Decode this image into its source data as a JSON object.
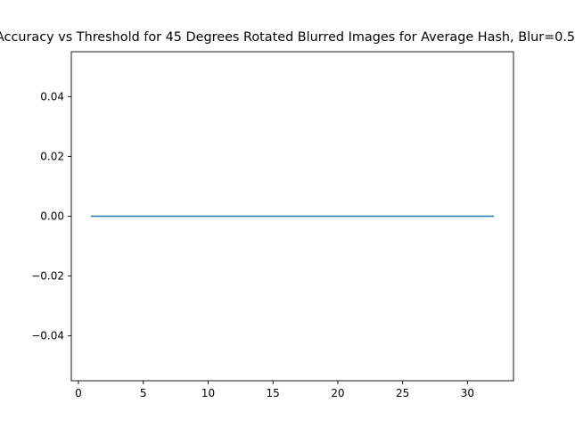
{
  "chart_data": {
    "type": "line",
    "title": "Accuracy vs Threshold for 45 Degrees Rotated Blurred Images for Average Hash, Blur=0.5",
    "xlabel": "",
    "ylabel": "",
    "x": [
      1,
      2,
      3,
      4,
      5,
      6,
      7,
      8,
      9,
      10,
      11,
      12,
      13,
      14,
      15,
      16,
      17,
      18,
      19,
      20,
      21,
      22,
      23,
      24,
      25,
      26,
      27,
      28,
      29,
      30,
      31,
      32
    ],
    "series": [
      {
        "values": [
          0,
          0,
          0,
          0,
          0,
          0,
          0,
          0,
          0,
          0,
          0,
          0,
          0,
          0,
          0,
          0,
          0,
          0,
          0,
          0,
          0,
          0,
          0,
          0,
          0,
          0,
          0,
          0,
          0,
          0,
          0,
          0
        ],
        "color": "#1f77b4"
      }
    ],
    "xlim": [
      -0.55,
      33.55
    ],
    "ylim": [
      -0.055,
      0.055
    ],
    "xticks": [
      0,
      5,
      10,
      15,
      20,
      25,
      30
    ],
    "xtick_labels": [
      "0",
      "5",
      "10",
      "15",
      "20",
      "25",
      "30"
    ],
    "yticks": [
      -0.04,
      -0.02,
      0.0,
      0.02,
      0.04
    ],
    "ytick_labels": [
      "−0.04",
      "−0.02",
      "0.00",
      "0.02",
      "0.04"
    ],
    "grid": false,
    "legend": "none"
  }
}
